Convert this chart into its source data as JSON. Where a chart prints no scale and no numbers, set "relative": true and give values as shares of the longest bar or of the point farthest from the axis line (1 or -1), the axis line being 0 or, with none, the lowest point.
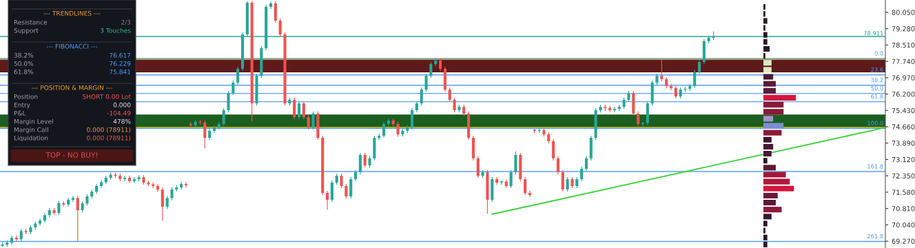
{
  "chart_data": [
    {
      "type": "candlestick",
      "categories": [
        null,
        null,
        null,
        null,
        null,
        null,
        null,
        null,
        null,
        null,
        null,
        null,
        null,
        null,
        null,
        null,
        null,
        null,
        null,
        null,
        null,
        null,
        null,
        null,
        null,
        null,
        null,
        null,
        null,
        null,
        null,
        null,
        null,
        null,
        null,
        null,
        null,
        null,
        null,
        null,
        null,
        null,
        null,
        null,
        null,
        null,
        null,
        null,
        null,
        null,
        null,
        null,
        null,
        null,
        null,
        null,
        null,
        null,
        null,
        null,
        null,
        null,
        null,
        null,
        null,
        null,
        null,
        null,
        null,
        null,
        null,
        null,
        null,
        null,
        null,
        null,
        null,
        null,
        null,
        null,
        null,
        null,
        null,
        null,
        null,
        null,
        null,
        null,
        null,
        null,
        null,
        null,
        null,
        null,
        null,
        null,
        null,
        null,
        null,
        null,
        null,
        null,
        null,
        null,
        null,
        null,
        null,
        null,
        null,
        null,
        null,
        null,
        null,
        null,
        null,
        null,
        null,
        null,
        null,
        null,
        null,
        null,
        null,
        null,
        null,
        null,
        null,
        null,
        null,
        null,
        null,
        null,
        null,
        null,
        null,
        null,
        null,
        null,
        null,
        null,
        null,
        null,
        null,
        null,
        null,
        null,
        null,
        null,
        null,
        null,
        null,
        null,
        null,
        null,
        null,
        null,
        null,
        null,
        null,
        null,
        null,
        null,
        null,
        null,
        null,
        null,
        null,
        null,
        null,
        null,
        null,
        null,
        null,
        null,
        null,
        null,
        null,
        null,
        null,
        null,
        null,
        null,
        null,
        null,
        null,
        null,
        null,
        null
      ],
      "ohlc": [
        [
          69.05,
          69.21,
          69.0,
          69.11
        ],
        [
          69.11,
          69.3,
          69.01,
          69.2
        ],
        [
          69.2,
          69.53,
          69.1,
          69.43
        ],
        [
          69.43,
          69.53,
          69.26,
          69.36
        ],
        [
          69.36,
          69.85,
          69.26,
          69.75
        ],
        [
          69.75,
          69.85,
          69.6,
          69.7
        ],
        [
          69.7,
          70.02,
          69.6,
          69.92
        ],
        [
          69.92,
          70.2,
          69.82,
          70.1
        ],
        [
          70.1,
          70.34,
          70.0,
          70.24
        ],
        [
          70.24,
          70.6,
          70.14,
          70.5
        ],
        [
          70.5,
          70.83,
          70.4,
          70.73
        ],
        [
          70.73,
          70.83,
          70.5,
          70.6
        ],
        [
          70.6,
          71.16,
          70.5,
          71.06
        ],
        [
          71.06,
          71.16,
          70.9,
          71.0
        ],
        [
          71.0,
          71.32,
          70.9,
          71.22
        ],
        [
          71.22,
          71.4,
          71.12,
          71.3
        ],
        [
          71.3,
          71.4,
          69.27,
          70.73
        ],
        [
          70.73,
          71.15,
          70.63,
          71.05
        ],
        [
          71.05,
          71.48,
          70.95,
          71.38
        ],
        [
          71.38,
          71.7,
          71.28,
          71.6
        ],
        [
          71.6,
          71.97,
          71.5,
          71.87
        ],
        [
          71.87,
          72.15,
          71.77,
          72.05
        ],
        [
          72.05,
          72.36,
          71.95,
          72.26
        ],
        [
          72.26,
          72.5,
          72.16,
          72.4
        ],
        [
          72.4,
          72.5,
          72.25,
          72.35
        ],
        [
          72.35,
          72.45,
          72.1,
          72.2
        ],
        [
          72.2,
          72.36,
          72.1,
          72.26
        ],
        [
          72.26,
          72.36,
          72.0,
          72.1
        ],
        [
          72.1,
          72.29,
          72.0,
          72.19
        ],
        [
          72.19,
          72.38,
          72.09,
          72.28
        ],
        [
          72.28,
          72.38,
          71.93,
          72.03
        ],
        [
          72.03,
          72.13,
          71.85,
          71.95
        ],
        [
          71.95,
          72.05,
          71.77,
          71.87
        ],
        [
          71.87,
          71.97,
          71.6,
          71.7
        ],
        [
          71.7,
          71.8,
          70.24,
          70.89
        ],
        [
          70.89,
          71.4,
          70.79,
          71.3
        ],
        [
          71.3,
          71.81,
          71.2,
          71.71
        ],
        [
          71.71,
          71.9,
          71.61,
          71.8
        ],
        [
          71.8,
          72.06,
          71.7,
          71.96
        ],
        [
          71.96,
          72.06,
          71.8,
          71.9
        ],
        [
          74.79,
          74.89,
          74.63,
          74.73
        ],
        [
          74.73,
          74.99,
          74.63,
          74.89
        ],
        [
          74.89,
          74.99,
          74.76,
          74.86
        ],
        [
          74.86,
          74.96,
          73.65,
          74.14
        ],
        [
          74.14,
          74.57,
          74.04,
          74.47
        ],
        [
          74.47,
          74.73,
          74.37,
          74.63
        ],
        [
          74.63,
          74.89,
          74.53,
          74.79
        ],
        [
          74.79,
          75.54,
          74.69,
          75.44
        ],
        [
          75.44,
          76.35,
          75.34,
          76.25
        ],
        [
          76.25,
          76.84,
          76.15,
          76.74
        ],
        [
          76.74,
          77.49,
          76.64,
          77.39
        ],
        [
          77.39,
          79.11,
          77.29,
          79.01
        ],
        [
          79.01,
          80.58,
          78.91,
          80.5
        ],
        [
          80.5,
          80.58,
          74.9,
          75.76
        ],
        [
          75.76,
          77.16,
          75.66,
          77.06
        ],
        [
          77.06,
          78.46,
          76.96,
          78.36
        ],
        [
          78.36,
          80.41,
          78.26,
          80.31
        ],
        [
          80.31,
          80.55,
          80.21,
          80.47
        ],
        [
          80.47,
          80.57,
          79.56,
          79.66
        ],
        [
          79.66,
          79.76,
          78.91,
          79.01
        ],
        [
          79.01,
          79.11,
          75.66,
          75.76
        ],
        [
          75.76,
          76.03,
          75.66,
          75.93
        ],
        [
          75.93,
          76.03,
          75.01,
          75.11
        ],
        [
          75.11,
          75.86,
          75.01,
          75.76
        ],
        [
          75.76,
          75.86,
          75.01,
          75.11
        ],
        [
          75.11,
          75.21,
          74.53,
          74.63
        ],
        [
          74.63,
          75.38,
          74.53,
          75.28
        ],
        [
          75.28,
          75.38,
          74.04,
          74.14
        ],
        [
          74.14,
          74.24,
          71.44,
          71.54
        ],
        [
          71.54,
          71.64,
          70.75,
          71.22
        ],
        [
          71.22,
          72.13,
          71.12,
          72.03
        ],
        [
          72.03,
          72.45,
          71.93,
          72.35
        ],
        [
          72.35,
          72.45,
          71.77,
          71.87
        ],
        [
          71.87,
          71.97,
          71.28,
          71.38
        ],
        [
          71.38,
          72.29,
          71.28,
          72.19
        ],
        [
          72.19,
          72.62,
          72.09,
          72.52
        ],
        [
          72.52,
          73.43,
          72.42,
          73.33
        ],
        [
          73.33,
          73.43,
          72.74,
          72.84
        ],
        [
          72.84,
          73.27,
          72.74,
          73.17
        ],
        [
          73.17,
          74.24,
          73.07,
          74.14
        ],
        [
          74.14,
          74.34,
          74.04,
          74.24
        ],
        [
          74.24,
          74.89,
          74.14,
          74.79
        ],
        [
          74.79,
          75.05,
          74.69,
          74.95
        ],
        [
          74.95,
          75.05,
          74.69,
          74.79
        ],
        [
          74.79,
          74.89,
          74.2,
          74.3
        ],
        [
          74.3,
          74.57,
          74.2,
          74.47
        ],
        [
          74.47,
          74.73,
          74.37,
          74.63
        ],
        [
          74.63,
          75.54,
          74.53,
          75.44
        ],
        [
          75.44,
          75.86,
          75.34,
          75.76
        ],
        [
          75.76,
          76.51,
          75.66,
          76.41
        ],
        [
          76.41,
          77.16,
          76.31,
          77.06
        ],
        [
          77.06,
          77.71,
          76.96,
          77.61
        ],
        [
          77.61,
          77.88,
          77.51,
          77.78
        ],
        [
          77.78,
          77.88,
          77.29,
          77.39
        ],
        [
          77.39,
          77.49,
          76.31,
          76.41
        ],
        [
          76.41,
          76.51,
          75.83,
          75.93
        ],
        [
          75.93,
          76.03,
          75.34,
          75.44
        ],
        [
          75.44,
          75.7,
          75.34,
          75.6
        ],
        [
          75.6,
          75.7,
          75.18,
          75.28
        ],
        [
          75.28,
          75.38,
          74.04,
          74.14
        ],
        [
          74.14,
          74.24,
          73.07,
          73.17
        ],
        [
          73.17,
          73.27,
          72.25,
          72.35
        ],
        [
          72.35,
          72.62,
          72.25,
          72.52
        ],
        [
          72.52,
          72.62,
          70.57,
          71.22
        ],
        [
          71.22,
          72.29,
          71.12,
          72.19
        ],
        [
          72.19,
          72.29,
          71.93,
          72.03
        ],
        [
          72.03,
          72.13,
          71.93,
          72.08
        ],
        [
          72.08,
          72.18,
          71.77,
          71.87
        ],
        [
          71.87,
          72.62,
          71.77,
          72.52
        ],
        [
          72.52,
          73.5,
          72.42,
          73.33
        ],
        [
          73.33,
          73.43,
          72.09,
          72.19
        ],
        [
          72.19,
          72.29,
          71.44,
          71.54
        ],
        [
          71.54,
          71.64,
          71.35,
          71.45
        ],
        [
          74.52,
          74.57,
          74.37,
          74.47
        ],
        [
          74.47,
          74.57,
          74.37,
          74.5
        ],
        [
          74.5,
          74.6,
          74.2,
          74.3
        ],
        [
          74.3,
          74.4,
          73.88,
          73.98
        ],
        [
          73.98,
          74.08,
          73.07,
          73.17
        ],
        [
          73.17,
          73.27,
          72.42,
          72.52
        ],
        [
          72.52,
          72.62,
          71.61,
          71.71
        ],
        [
          71.71,
          72.29,
          71.61,
          72.19
        ],
        [
          72.19,
          72.29,
          71.77,
          71.87
        ],
        [
          71.87,
          72.29,
          71.77,
          72.19
        ],
        [
          72.19,
          72.78,
          72.09,
          72.68
        ],
        [
          72.68,
          73.27,
          72.58,
          73.17
        ],
        [
          73.17,
          74.24,
          73.07,
          74.14
        ],
        [
          74.14,
          75.54,
          74.04,
          75.44
        ],
        [
          75.44,
          75.7,
          75.34,
          75.6
        ],
        [
          75.6,
          75.7,
          75.4,
          75.55
        ],
        [
          75.55,
          75.65,
          75.34,
          75.44
        ],
        [
          75.44,
          75.6,
          75.34,
          75.5
        ],
        [
          75.5,
          75.7,
          75.4,
          75.6
        ],
        [
          75.6,
          76.03,
          75.5,
          75.93
        ],
        [
          75.93,
          76.35,
          75.83,
          76.25
        ],
        [
          76.25,
          76.35,
          75.18,
          75.28
        ],
        [
          75.28,
          75.38,
          74.69,
          74.79
        ],
        [
          74.79,
          74.89,
          74.69,
          74.84
        ],
        [
          74.84,
          75.86,
          74.74,
          75.76
        ],
        [
          75.76,
          76.84,
          75.66,
          76.74
        ],
        [
          76.74,
          77.16,
          76.64,
          77.06
        ],
        [
          77.06,
          77.8,
          76.8,
          76.9
        ],
        [
          76.9,
          77.0,
          76.48,
          76.58
        ],
        [
          76.58,
          76.68,
          76.38,
          76.48
        ],
        [
          76.48,
          76.58,
          75.99,
          76.09
        ],
        [
          76.09,
          76.51,
          75.99,
          76.41
        ],
        [
          76.41,
          76.55,
          76.31,
          76.45
        ],
        [
          76.45,
          76.68,
          76.35,
          76.58
        ],
        [
          76.58,
          77.34,
          76.48,
          77.24
        ],
        [
          77.24,
          77.81,
          77.14,
          77.71
        ],
        [
          77.71,
          78.79,
          77.61,
          78.69
        ],
        [
          78.69,
          78.95,
          78.59,
          78.85
        ],
        [
          78.85,
          79.15,
          78.75,
          78.91
        ],
        null,
        null,
        null,
        null,
        null,
        null,
        null,
        null,
        null,
        null,
        null,
        null,
        null,
        null,
        null,
        null,
        null,
        null,
        null,
        null,
        null,
        null,
        null,
        null,
        null,
        null,
        null,
        null,
        null,
        null,
        null,
        null,
        null,
        null,
        null,
        null
      ],
      "colors": [
        "#26a69a",
        "#26a69a",
        "#26a69a",
        "#ef5350",
        "#26a69a",
        "#ef5350",
        "#26a69a",
        "#26a69a",
        "#26a69a",
        "#26a69a",
        "#26a69a",
        "#ef5350",
        "#26a69a",
        "#ef5350",
        "#26a69a",
        "#26a69a",
        "#ef5350",
        "#26a69a",
        "#26a69a",
        "#26a69a",
        "#26a69a",
        "#26a69a",
        "#26a69a",
        "#26a69a",
        "#ef5350",
        "#ef5350",
        "#26a69a",
        "#ef5350",
        "#26a69a",
        "#26a69a",
        "#ef5350",
        "#ef5350",
        "#ef5350",
        "#ef5350",
        "#ef5350",
        "#26a69a",
        "#26a69a",
        "#26a69a",
        "#26a69a",
        "#ef5350",
        "#ef5350",
        "#26a69a",
        "#ef5350",
        "#ef5350",
        "#26a69a",
        "#26a69a",
        "#26a69a",
        "#26a69a",
        "#26a69a",
        "#26a69a",
        "#26a69a",
        "#26a69a",
        "#26a69a",
        "#ef5350",
        "#26a69a",
        "#26a69a",
        "#26a69a",
        "#26a69a",
        "#ef5350",
        "#ef5350",
        "#ef5350",
        "#26a69a",
        "#ef5350",
        "#26a69a",
        "#ef5350",
        "#ef5350",
        "#26a69a",
        "#ef5350",
        "#ef5350",
        "#ef5350",
        "#26a69a",
        "#26a69a",
        "#ef5350",
        "#ef5350",
        "#26a69a",
        "#26a69a",
        "#26a69a",
        "#ef5350",
        "#26a69a",
        "#26a69a",
        "#26a69a",
        "#26a69a",
        "#26a69a",
        "#ef5350",
        "#ef5350",
        "#26a69a",
        "#26a69a",
        "#26a69a",
        "#26a69a",
        "#26a69a",
        "#26a69a",
        "#26a69a",
        "#26a69a",
        "#ef5350",
        "#ef5350",
        "#ef5350",
        "#ef5350",
        "#26a69a",
        "#ef5350",
        "#ef5350",
        "#ef5350",
        "#ef5350",
        "#26a69a",
        "#ef5350",
        "#26a69a",
        "#ef5350",
        "#26a69a",
        "#ef5350",
        "#26a69a",
        "#26a69a",
        "#ef5350",
        "#ef5350",
        "#ef5350",
        "#ef5350",
        "#26a69a",
        "#ef5350",
        "#ef5350",
        "#ef5350",
        "#ef5350",
        "#ef5350",
        "#26a69a",
        "#ef5350",
        "#26a69a",
        "#26a69a",
        "#26a69a",
        "#26a69a",
        "#26a69a",
        "#26a69a",
        "#ef5350",
        "#ef5350",
        "#26a69a",
        "#26a69a",
        "#26a69a",
        "#26a69a",
        "#ef5350",
        "#ef5350",
        "#26a69a",
        "#26a69a",
        "#26a69a",
        "#26a69a",
        "#ef5350",
        "#ef5350",
        "#ef5350",
        "#ef5350",
        "#26a69a",
        "#26a69a",
        "#26a69a",
        "#26a69a",
        "#26a69a",
        "#26a69a",
        "#26a69a",
        "#26a69a",
        null,
        null,
        null,
        null,
        null,
        null,
        null,
        null,
        null,
        null,
        null,
        null,
        null,
        null,
        null,
        null,
        null,
        null,
        null,
        null,
        null,
        null,
        null,
        null,
        null,
        null,
        null,
        null,
        null,
        null,
        null,
        null,
        null,
        null,
        null,
        null
      ],
      "series": [
        {
          "type": "line",
          "color": "#3ad13a",
          "values": [
            null,
            null,
            null,
            null,
            null,
            null,
            null,
            null,
            null,
            null,
            null,
            null,
            null,
            null,
            null,
            null,
            null,
            null,
            null,
            null,
            null,
            null,
            null,
            null,
            null,
            null,
            null,
            null,
            null,
            null,
            null,
            null,
            null,
            null,
            null,
            null,
            null,
            null,
            null,
            null,
            null,
            null,
            null,
            null,
            null,
            null,
            null,
            null,
            null,
            null,
            null,
            null,
            null,
            null,
            null,
            null,
            null,
            null,
            null,
            null,
            null,
            null,
            null,
            null,
            null,
            null,
            null,
            null,
            null,
            null,
            null,
            null,
            null,
            null,
            null,
            null,
            null,
            null,
            null,
            null,
            null,
            null,
            null,
            null,
            null,
            null,
            null,
            null,
            null,
            null,
            null,
            null,
            null,
            null,
            null,
            null,
            null,
            null,
            null,
            null,
            null,
            null,
            null,
            null,
            70.54,
            null,
            null,
            null,
            null,
            null,
            null,
            null,
            null,
            null,
            null,
            null,
            null,
            null,
            null,
            null,
            null,
            null,
            null,
            null,
            null,
            null,
            null,
            null,
            null,
            null,
            null,
            null,
            null,
            null,
            null,
            null,
            null,
            null,
            null,
            null,
            null,
            null,
            null,
            null,
            null,
            null,
            null,
            null,
            null,
            null,
            null,
            null,
            null,
            null,
            null,
            null,
            null,
            null,
            null,
            null,
            null,
            null,
            null,
            null,
            null,
            null,
            null,
            null,
            null,
            null,
            null,
            null,
            null,
            null,
            null,
            null,
            null,
            null,
            null,
            null,
            null,
            null,
            null,
            null,
            null,
            null,
            null,
            74.6
          ]
        }
      ],
      "ylim": [
        68.95,
        80.63
      ],
      "yticks": [
        {
          "value": 80.05,
          "label": "80.050"
        },
        {
          "value": 79.28,
          "label": "79.280"
        },
        {
          "value": 78.51,
          "label": "78.510"
        },
        {
          "value": 77.74,
          "label": "77.740"
        },
        {
          "value": 76.97,
          "label": "76.970"
        },
        {
          "value": 76.2,
          "label": "76.200"
        },
        {
          "value": 75.43,
          "label": "75.430"
        },
        {
          "value": 74.66,
          "label": "74.660"
        },
        {
          "value": 73.89,
          "label": "73.890"
        },
        {
          "value": 73.12,
          "label": "73.120"
        },
        {
          "value": 72.35,
          "label": "72.350"
        },
        {
          "value": 71.58,
          "label": "71.580"
        },
        {
          "value": 70.81,
          "label": "70.810"
        },
        {
          "value": 70.04,
          "label": "70.040"
        },
        {
          "value": 69.27,
          "label": "69.270"
        }
      ],
      "tick_labels": "y",
      "bands": [
        {
          "axis": "y",
          "from": 77.22,
          "to": 77.87,
          "color": "#5e1a1a"
        },
        {
          "axis": "y",
          "from": 74.6,
          "to": 75.24,
          "color": "#1b5e20"
        }
      ],
      "ref_lines": [
        {
          "axis": "y",
          "value": 77.84,
          "color": "#f5d000"
        },
        {
          "axis": "y",
          "value": 74.63,
          "color": "#f5d000"
        },
        {
          "axis": "y",
          "value": 78.911,
          "label": "78.911",
          "color": "#26a69a"
        },
        {
          "axis": "y",
          "value": 77.87,
          "color": "#5aa0f0"
        },
        {
          "axis": "y",
          "value": 77.1,
          "color": "#5aa0f0"
        },
        {
          "axis": "y",
          "value": 76.617,
          "color": "#5aa0f0"
        },
        {
          "axis": "y",
          "value": 76.229,
          "color": "#5aa0f0"
        },
        {
          "axis": "y",
          "value": 75.841,
          "color": "#5aa0f0"
        },
        {
          "axis": "y",
          "value": 74.585,
          "color": "#5aa0f0"
        },
        {
          "axis": "y",
          "value": 72.55,
          "color": "#5aa0f0"
        },
        {
          "axis": "y",
          "value": 69.26,
          "color": "#5aa0f0"
        }
      ],
      "annotations": [
        {
          "text": "0.0",
          "y": 77.87
        },
        {
          "text": "23.6",
          "y": 77.1
        },
        {
          "text": "38.2",
          "y": 76.617
        },
        {
          "text": "50.0",
          "y": 76.229
        },
        {
          "text": "61.8",
          "y": 75.841
        },
        {
          "text": "100.0",
          "y": 74.585
        },
        {
          "text": "161.8",
          "y": 72.55
        },
        {
          "text": "261.8",
          "y": 69.26
        }
      ]
    },
    {
      "type": "bar",
      "orientation": "horizontal",
      "relative": true,
      "tick_labels": false,
      "categories": [
        null,
        null,
        null,
        null,
        null,
        null,
        null,
        null,
        null,
        null,
        null,
        null,
        null,
        null,
        null,
        null,
        null,
        null,
        null,
        null,
        null,
        null,
        null,
        null,
        null,
        null,
        null,
        null,
        null,
        null,
        null,
        null,
        null,
        null,
        null
      ],
      "values": [
        0.06,
        0.06,
        0.12,
        0.06,
        0.12,
        0.12,
        0.19,
        0.06,
        0.25,
        0.25,
        0.3,
        0.38,
        0.38,
        1,
        0.62,
        0.62,
        0.3,
        0.62,
        0.56,
        0.25,
        0.3,
        0.25,
        0.12,
        0.38,
        0.69,
        0.81,
        0.94,
        0.44,
        0.38,
        0.56,
        0.25,
        0.12,
        0.06,
        0.12,
        0.12
      ],
      "colors": [
        "#2a1828",
        "#2a1828",
        "#2a1828",
        "#2a1828",
        "#2a1828",
        "#2a1828",
        "#2a1828",
        "#2a1828",
        "#dcebc4",
        "#dcebc4",
        "#4a1a34",
        "#5c1a36",
        "#5c1a36",
        "#d4163c",
        "#8b1a3a",
        "#8b1a3a",
        "#a893c8",
        "#7b8fd0",
        "#8b1a3a",
        "#3a1630",
        "#4a1a34",
        "#4a1a34",
        "#2a1828",
        "#5c1a36",
        "#a0183a",
        "#b0183a",
        "#d4163c",
        "#6a1a36",
        "#5c1a36",
        "#8b1a3a",
        "#3a1630",
        "#2a1828",
        "#2a1828",
        "#2a1828",
        "#2a1828"
      ]
    },
    {
      "type": "other",
      "categories": [
        "--- TRENDLINES ---",
        "Resistance",
        "Support",
        "--- FIBONACCI ---",
        "38.2%",
        "50.0%",
        "61.8%",
        "--- POSITION & MARGIN ---",
        "Position",
        "Entry",
        "P&L",
        "Margin Level",
        "Margin Call",
        "Liquidation"
      ],
      "value_labels": [
        null,
        "2/3",
        "3 Touches",
        null,
        "76.617",
        "76.229",
        "75.841",
        null,
        "SHORT 0.00 Lot",
        "0.000",
        "-104.49",
        "478%",
        "0.000 (78911)",
        "0.000 (78911)"
      ],
      "colors": [
        "#f0a030",
        "#7c7f88",
        "#26c281",
        "#4e9cf5",
        "#4e9cf5",
        "#4e9cf5",
        "#4e9cf5",
        "#f0a030",
        "#ef5350",
        "#e6e6e6",
        "#ef5350",
        "#e6e6e6",
        "#e0a030",
        "#ef5350"
      ],
      "annotations": [
        "TOP - NO BUY!"
      ]
    }
  ]
}
